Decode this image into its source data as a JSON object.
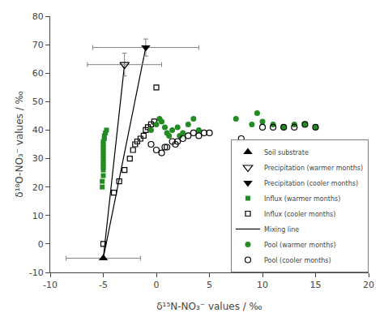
{
  "chart_data": {
    "type": "scatter",
    "xlabel": "δ¹⁵N-NO₃⁻ values / ‰",
    "ylabel": "δ¹⁸O-NO₃⁻ values / ‰",
    "xlim": [
      -10,
      20
    ],
    "ylim": [
      -10,
      80
    ],
    "xticks": [
      -10,
      -5,
      0,
      5,
      10,
      15,
      20
    ],
    "yticks": [
      -10,
      0,
      10,
      20,
      30,
      40,
      50,
      60,
      70,
      80
    ],
    "grid": false,
    "legend": "lower right",
    "series": [
      {
        "name": "Soil substrate",
        "type": "scatter",
        "marker": "triangle-up",
        "color": "black",
        "x": [
          -5
        ],
        "y": [
          -5
        ],
        "x_error": [
          3.5
        ]
      },
      {
        "name": "Precipitation (warmer months)",
        "type": "scatter",
        "marker": "triangle-down-open",
        "color": "black",
        "x": [
          -3
        ],
        "y": [
          63
        ],
        "x_error": [
          3.5
        ],
        "y_error": [
          4
        ]
      },
      {
        "name": "Precipitation (cooler months)",
        "type": "scatter",
        "marker": "triangle-down",
        "color": "black",
        "x": [
          -1
        ],
        "y": [
          69
        ],
        "x_error": [
          5
        ],
        "y_error": [
          3
        ]
      },
      {
        "name": "Influx (warmer months)",
        "type": "scatter",
        "marker": "square",
        "color": "#228B22",
        "x": [
          -5.1,
          -5.1,
          -5.0,
          -5.0,
          -5.0,
          -5.0,
          -5.0,
          -5.0,
          -5.0,
          -5.0,
          -5.0,
          -5.0,
          -5.0,
          -5.0,
          -4.9,
          -4.9,
          -4.8,
          -4.7
        ],
        "y": [
          20,
          22,
          24,
          26,
          27,
          28,
          29,
          30,
          31,
          32,
          33,
          34,
          35,
          36,
          37,
          38,
          39,
          40
        ]
      },
      {
        "name": "Influx (cooler months)",
        "type": "scatter",
        "marker": "square-open",
        "color": "black",
        "x": [
          -5.0,
          -4.0,
          -3.5,
          -3.0,
          -2.5,
          -2.2,
          -2.0,
          -1.8,
          -1.5,
          -1.2,
          -1.0,
          -0.8,
          -0.5,
          -0.2,
          0.0
        ],
        "y": [
          0,
          18,
          22,
          26,
          30,
          33,
          35,
          36,
          37,
          38,
          40,
          41,
          42,
          43,
          55
        ]
      },
      {
        "name": "Mixing line",
        "type": "line",
        "color": "black",
        "x": [
          -5,
          -3,
          null,
          -5,
          -1
        ],
        "y": [
          -5,
          63,
          null,
          -5,
          69
        ]
      },
      {
        "name": "Pool (warmer months)",
        "type": "scatter",
        "marker": "circle",
        "color": "#228B22",
        "x": [
          -0.5,
          0.0,
          0.3,
          0.5,
          0.8,
          1.0,
          1.2,
          1.5,
          2.0,
          2.2,
          2.5,
          3.0,
          3.5,
          4.0,
          7.5,
          9.0,
          9.5,
          10.0,
          11.0,
          12.0,
          13.0,
          14.0,
          15.0
        ],
        "y": [
          40,
          42,
          44,
          43,
          41,
          39,
          38,
          40,
          41,
          38,
          39,
          42,
          44,
          40,
          44,
          42,
          46,
          43,
          42,
          41,
          42,
          42,
          41
        ]
      },
      {
        "name": "Pool (cooler months)",
        "type": "scatter",
        "marker": "circle-open",
        "color": "black",
        "x": [
          -0.5,
          0.0,
          0.5,
          0.8,
          1.0,
          1.5,
          1.8,
          2.0,
          2.5,
          3.0,
          3.5,
          4.0,
          4.5,
          5.0,
          8.0,
          10.0,
          11.0,
          12.0,
          13.0,
          14.0,
          15.0
        ],
        "y": [
          35,
          33,
          32,
          34,
          34,
          36,
          35,
          36,
          37,
          38,
          39,
          38,
          39,
          39,
          37,
          41,
          41,
          41,
          41,
          42,
          41
        ]
      }
    ]
  }
}
